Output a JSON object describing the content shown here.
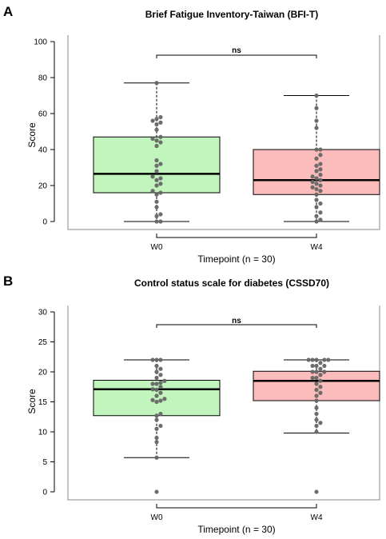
{
  "chart_data": [
    {
      "panel_label": "A",
      "type": "box",
      "title": "Brief Fatigue Inventory-Taiwan (BFI-T)",
      "xlabel": "Timepoint (n = 30)",
      "ylabel": "Score",
      "ylim": [
        0,
        100
      ],
      "yticks": [
        0,
        20,
        40,
        60,
        80,
        100
      ],
      "categories": [
        "W0",
        "W4"
      ],
      "significance": "ns",
      "boxes": [
        {
          "category": "W0",
          "fill": "#c2f5be",
          "min": 0,
          "q1": 16,
          "median": 26.5,
          "q3": 47,
          "max": 77,
          "points": [
            0,
            0,
            3,
            4,
            8,
            11,
            15,
            16,
            17,
            20,
            21,
            23,
            24,
            25,
            28,
            31,
            32,
            34,
            42,
            44,
            45,
            46,
            47,
            51,
            54,
            55,
            56,
            57,
            58,
            77
          ]
        },
        {
          "category": "W4",
          "fill": "#fcbcbc",
          "min": 0,
          "q1": 15,
          "median": 23,
          "q3": 40,
          "max": 70,
          "points": [
            0,
            1,
            3,
            5,
            8,
            10,
            12,
            15,
            17,
            18,
            19,
            20,
            21,
            22,
            23,
            24,
            25,
            26,
            28,
            29,
            31,
            32,
            35,
            37,
            40,
            40,
            52,
            56,
            63,
            70
          ]
        }
      ]
    },
    {
      "panel_label": "B",
      "type": "box",
      "title": "Control status scale  for diabetes (CSSD70)",
      "xlabel": "Timepoint (n = 30)",
      "ylabel": "Score",
      "ylim": [
        0,
        30
      ],
      "yticks": [
        0,
        5,
        10,
        15,
        20,
        25,
        30
      ],
      "categories": [
        "W0",
        "W4"
      ],
      "significance": "ns",
      "boxes": [
        {
          "category": "W0",
          "fill": "#c2f5be",
          "min": 5.7,
          "q1": 12.7,
          "median": 17.1,
          "q3": 18.6,
          "max": 22,
          "points": [
            0,
            5.7,
            8.3,
            9,
            10.5,
            11,
            12,
            12.7,
            13,
            15,
            15.2,
            15.3,
            15.5,
            16,
            16.5,
            17,
            17.1,
            17.5,
            18,
            18,
            18.2,
            18.5,
            19,
            19.5,
            20,
            20.5,
            21,
            22,
            22,
            22
          ]
        },
        {
          "category": "W4",
          "fill": "#fcbcbc",
          "min": 9.8,
          "q1": 15.2,
          "median": 18.5,
          "q3": 20.1,
          "max": 22,
          "points": [
            0,
            10,
            11,
            11.5,
            12,
            13,
            14,
            15.2,
            16,
            16.5,
            17,
            17.5,
            18,
            18.5,
            19,
            19,
            19.5,
            20,
            20,
            20,
            20.5,
            21,
            21,
            21,
            21.5,
            22,
            22,
            22,
            22,
            22
          ]
        }
      ]
    }
  ]
}
